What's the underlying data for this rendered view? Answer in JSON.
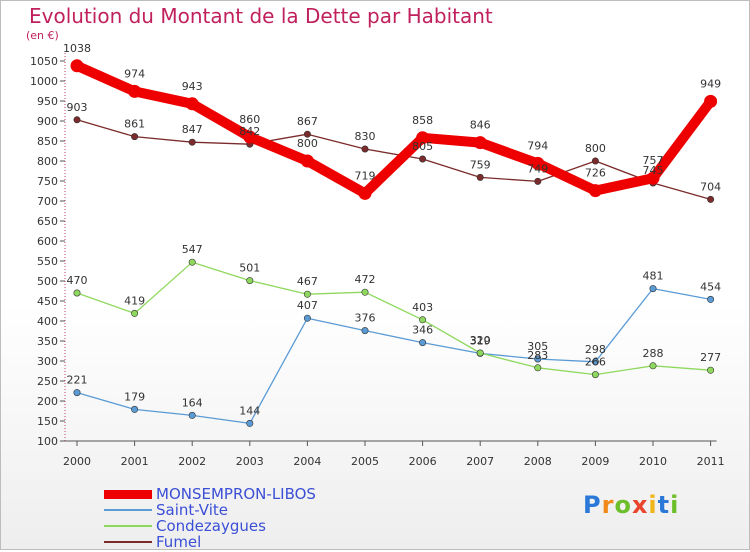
{
  "title": "Evolution du Montant de la Dette par Habitant",
  "subtitle": "(en €)",
  "logo": {
    "letters": [
      "P",
      "r",
      "o",
      "x",
      "i",
      "t",
      "i"
    ],
    "colors": [
      "#2b78d8",
      "#f08a1a",
      "#6cbf2a",
      "#e8452c",
      "#f0b51a",
      "#2b78d8",
      "#6cbf2a"
    ]
  },
  "chart_data": {
    "type": "line",
    "x": [
      "2000",
      "2001",
      "2002",
      "2003",
      "2004",
      "2005",
      "2006",
      "2007",
      "2008",
      "2009",
      "2010",
      "2011"
    ],
    "ylim": [
      100,
      1050
    ],
    "yticks": [
      100,
      150,
      200,
      250,
      300,
      350,
      400,
      450,
      500,
      550,
      600,
      650,
      700,
      750,
      800,
      850,
      900,
      950,
      1000,
      1050
    ],
    "grid": false,
    "legend_position": "bottom-left",
    "series": [
      {
        "name": "MONSEMPRON-LIBOS",
        "color": "#ee0000",
        "values": [
          1038,
          974,
          943,
          860,
          800,
          719,
          858,
          846,
          794,
          726,
          757,
          949
        ]
      },
      {
        "name": "Saint-Vite",
        "color": "#5b9bd5",
        "values": [
          221,
          179,
          164,
          144,
          407,
          376,
          346,
          319,
          305,
          298,
          481,
          454
        ]
      },
      {
        "name": "Condezaygues",
        "color": "#8fd85e",
        "values": [
          470,
          419,
          547,
          501,
          467,
          472,
          403,
          320,
          283,
          266,
          288,
          277
        ]
      },
      {
        "name": "Fumel",
        "color": "#7b2b2b",
        "values": [
          903,
          861,
          847,
          842,
          867,
          830,
          805,
          759,
          749,
          800,
          745,
          704
        ]
      }
    ]
  }
}
